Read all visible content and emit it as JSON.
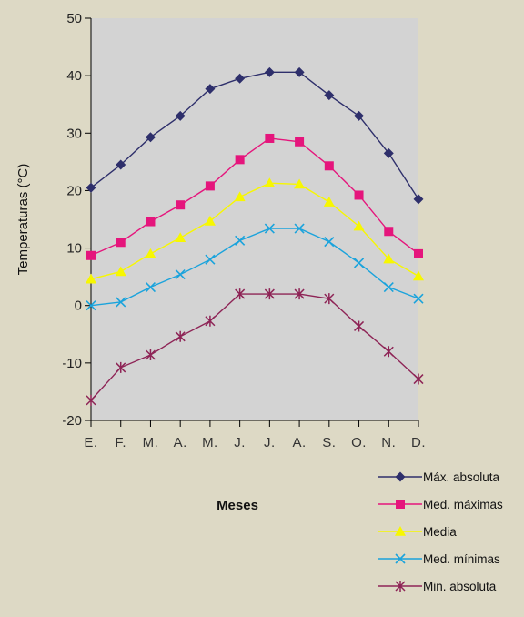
{
  "chart_data": {
    "type": "line",
    "xlabel": "Meses",
    "ylabel": "Temperaturas (°C)",
    "ylim": [
      -20,
      50
    ],
    "yticks": [
      -20,
      -10,
      0,
      10,
      20,
      30,
      40,
      50
    ],
    "grid": false,
    "legend_position": "bottom-right",
    "plot_background": "#d3d3d3",
    "categories": [
      "E.",
      "F.",
      "M.",
      "A.",
      "M.",
      "J.",
      "J.",
      "A.",
      "S.",
      "O.",
      "N.",
      "D."
    ],
    "series": [
      {
        "name": "Máx. absoluta",
        "color": "#2e2f6b",
        "marker": "diamond",
        "values": [
          20.5,
          24.5,
          29.3,
          33,
          37.7,
          39.5,
          40.6,
          40.6,
          36.6,
          33,
          26.5,
          18.5
        ]
      },
      {
        "name": "Med. máximas",
        "color": "#e5157c",
        "marker": "square",
        "values": [
          8.7,
          11,
          14.6,
          17.5,
          20.8,
          25.4,
          29.1,
          28.5,
          24.3,
          19.2,
          12.9,
          9
        ]
      },
      {
        "name": "Media",
        "color": "#f7f700",
        "marker": "triangle",
        "values": [
          4.6,
          5.9,
          9,
          11.8,
          14.7,
          18.9,
          21.3,
          21.1,
          18,
          13.8,
          8.1,
          5.1
        ]
      },
      {
        "name": "Med. mínimas",
        "color": "#1aa3dc",
        "marker": "x",
        "values": [
          0,
          0.6,
          3.2,
          5.4,
          8,
          11.3,
          13.4,
          13.4,
          11.1,
          7.4,
          3.2,
          1.2
        ]
      },
      {
        "name": "Min. absoluta",
        "color": "#8e2456",
        "marker": "star",
        "values": [
          -16.5,
          -10.8,
          -8.6,
          -5.4,
          -2.7,
          2,
          2,
          2,
          1.2,
          -3.6,
          -8,
          -12.8
        ]
      }
    ]
  }
}
